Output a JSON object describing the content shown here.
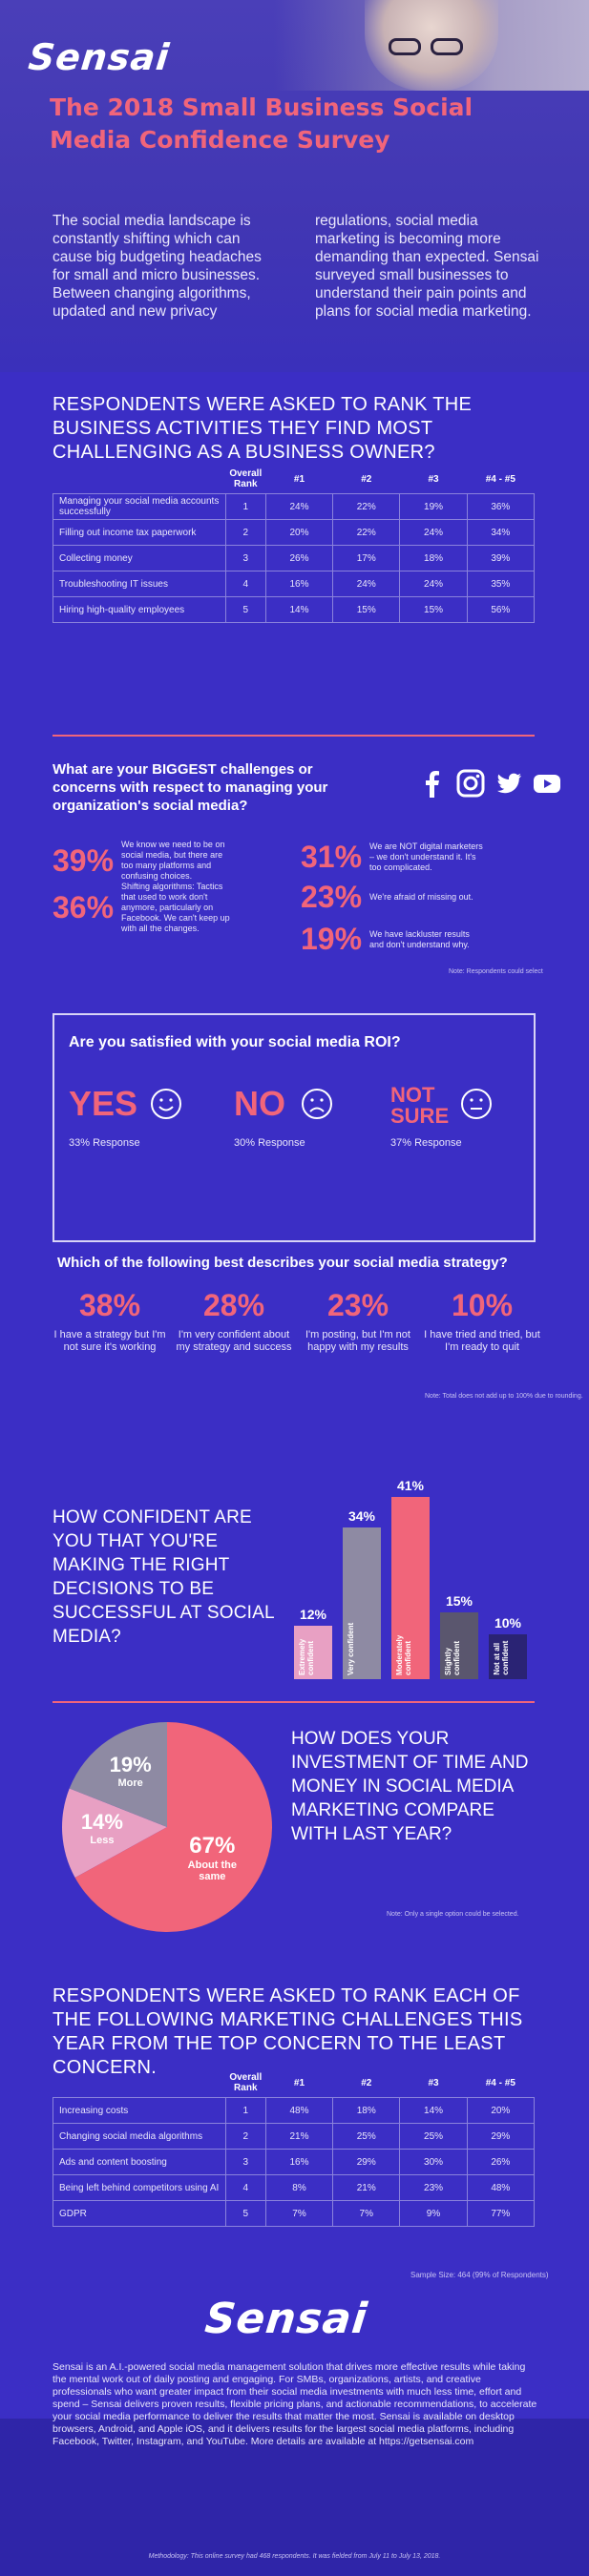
{
  "header": {
    "logo": "Sensai",
    "title": "The 2018 Small Business Social Media Confidence Survey",
    "intro_left": "The social media landscape is constantly shifting which can cause big budgeting headaches for small and micro businesses. Between changing algorithms, updated and new privacy",
    "intro_right": "regulations, social media marketing is becoming more demanding than expected. Sensai surveyed small businesses to understand their pain points and plans for social media marketing."
  },
  "business_activities": {
    "title": "RESPONDENTS WERE ASKED TO RANK THE BUSINESS ACTIVITIES THEY FIND MOST CHALLENGING AS A BUSINESS OWNER?",
    "columns": [
      "Overall Rank",
      "#1",
      "#2",
      "#3",
      "#4 - #5"
    ],
    "rows": [
      {
        "activity": "Managing your social media accounts successfully",
        "rank": "1",
        "c1": "24%",
        "c2": "22%",
        "c3": "19%",
        "c4": "36%"
      },
      {
        "activity": "Filling out income tax paperwork",
        "rank": "2",
        "c1": "20%",
        "c2": "22%",
        "c3": "24%",
        "c4": "34%"
      },
      {
        "activity": "Collecting money",
        "rank": "3",
        "c1": "26%",
        "c2": "17%",
        "c3": "18%",
        "c4": "39%"
      },
      {
        "activity": "Troubleshooting IT issues",
        "rank": "4",
        "c1": "16%",
        "c2": "24%",
        "c3": "24%",
        "c4": "35%"
      },
      {
        "activity": "Hiring high-quality employees",
        "rank": "5",
        "c1": "14%",
        "c2": "15%",
        "c3": "15%",
        "c4": "56%"
      }
    ]
  },
  "challenges": {
    "title": "What are your BIGGEST challenges or concerns with respect to managing your organization's social media?",
    "social_icons": [
      "facebook-icon",
      "instagram-icon",
      "twitter-icon",
      "youtube-icon"
    ],
    "left": [
      {
        "pct": "39%",
        "text": "We know we need to be on social media, but there are too many platforms and confusing choices."
      },
      {
        "pct": "36%",
        "text": "Shifting algorithms: Tactics that used to work don't anymore, particularly on Facebook. We can't keep up with all the changes."
      }
    ],
    "right": [
      {
        "pct": "31%",
        "text": "We are NOT digital marketers – we don't understand it. It's too complicated."
      },
      {
        "pct": "23%",
        "text": "We're afraid of missing out."
      },
      {
        "pct": "19%",
        "text": "We have lackluster results and don't understand why."
      }
    ],
    "note": "Note: Respondents could select"
  },
  "roi": {
    "title": "Are you satisfied with your social media ROI?",
    "answers": [
      {
        "label": "YES",
        "response": "33% Response",
        "face": "smile-face-icon"
      },
      {
        "label": "NO",
        "response": "30% Response",
        "face": "frown-face-icon"
      },
      {
        "label": "NOT SURE",
        "response": "37% Response",
        "face": "neutral-face-icon"
      }
    ]
  },
  "strategy": {
    "title": "Which of the following best describes your social media strategy?",
    "items": [
      {
        "pct": "38%",
        "text": "I have a strategy but I'm not sure it's working"
      },
      {
        "pct": "28%",
        "text": "I'm very confident about my strategy and success"
      },
      {
        "pct": "23%",
        "text": "I'm posting, but I'm not happy with my results"
      },
      {
        "pct": "10%",
        "text": "I have tried and tried, but I'm ready to quit"
      }
    ],
    "note": "Note: Total does not add up to 100% due to rounding."
  },
  "confidence": {
    "question": "HOW CONFIDENT ARE YOU THAT YOU'RE MAKING THE RIGHT DECISIONS TO BE SUCCESSFUL AT SOCIAL MEDIA?"
  },
  "investment": {
    "question": "HOW DOES YOUR INVESTMENT OF TIME AND MONEY IN SOCIAL MEDIA MARKETING COMPARE WITH LAST YEAR?",
    "note": "Note: Only a single option could be selected."
  },
  "chart_data": [
    {
      "type": "bar",
      "categories": [
        "Extremely confident",
        "Very confident",
        "Moderately confident",
        "Slightly confident",
        "Not at all confident"
      ],
      "values": [
        12,
        34,
        41,
        15,
        10
      ],
      "value_labels": [
        "12%",
        "34%",
        "41%",
        "15%",
        "10%"
      ],
      "colors": [
        "#e8a0c3",
        "#8e8aa3",
        "#f1657a",
        "#5a566e",
        "#2a2374"
      ],
      "title": "",
      "xlabel": "",
      "ylabel": "",
      "ylim": [
        0,
        45
      ],
      "grid": false
    },
    {
      "type": "pie",
      "categories": [
        "Less",
        "More",
        "About the same"
      ],
      "values": [
        14,
        19,
        67
      ],
      "value_labels": [
        "14%",
        "19%",
        "67%"
      ],
      "colors": [
        "#e8a0c3",
        "#8e8aa3",
        "#f1657a"
      ],
      "title": ""
    }
  ],
  "marketing_challenges": {
    "title": "RESPONDENTS WERE ASKED TO RANK EACH OF THE FOLLOWING MARKETING CHALLENGES THIS YEAR FROM THE TOP CONCERN TO THE LEAST CONCERN.",
    "columns": [
      "Overall Rank",
      "#1",
      "#2",
      "#3",
      "#4 - #5"
    ],
    "rows": [
      {
        "activity": "Increasing costs",
        "rank": "1",
        "c1": "48%",
        "c2": "18%",
        "c3": "14%",
        "c4": "20%"
      },
      {
        "activity": "Changing social media algorithms",
        "rank": "2",
        "c1": "21%",
        "c2": "25%",
        "c3": "25%",
        "c4": "29%"
      },
      {
        "activity": "Ads and content boosting",
        "rank": "3",
        "c1": "16%",
        "c2": "29%",
        "c3": "30%",
        "c4": "26%"
      },
      {
        "activity": "Being left behind competitors using AI",
        "rank": "4",
        "c1": "8%",
        "c2": "21%",
        "c3": "23%",
        "c4": "48%"
      },
      {
        "activity": "GDPR",
        "rank": "5",
        "c1": "7%",
        "c2": "7%",
        "c3": "9%",
        "c4": "77%"
      }
    ],
    "sample_size": "Sample Size: 464 (99% of Respondents)"
  },
  "footer": {
    "logo": "Sensai",
    "about": "Sensai is an A.I.-powered social media management solution that drives more effective results while taking the mental work out of daily posting and engaging. For SMBs, organizations, artists, and creative professionals who want greater impact from their social media investments with much less time, effort and spend – Sensai delivers proven results, flexible pricing plans, and actionable recommendations, to accelerate your social media performance to deliver the results that matter the most. Sensai is available on desktop browsers, Android, and Apple iOS, and it delivers results for the largest social media platforms, including Facebook, Twitter, Instagram, and YouTube. More details are available at https://getsensai.com",
    "methodology": "Methodology: This online survey had 468 respondents. It was fielded from July 11 to July 13, 2018."
  }
}
